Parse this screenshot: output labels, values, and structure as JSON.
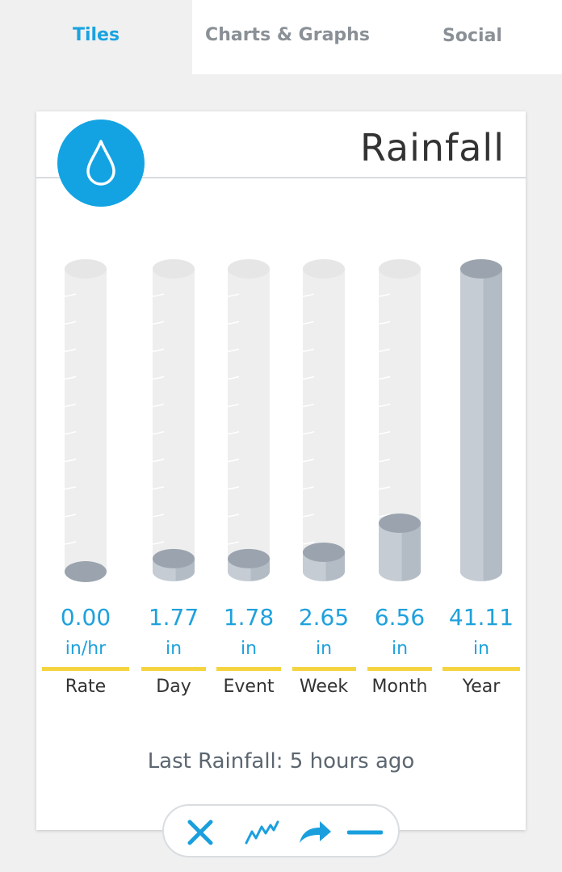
{
  "tabs": [
    {
      "label": "Tiles",
      "active": true
    },
    {
      "label": "Charts & Graphs",
      "active": false
    },
    {
      "label": "Social",
      "active": false
    }
  ],
  "card": {
    "title": "Rainfall",
    "icon": "water-drop-icon",
    "last_rainfall": "Last Rainfall: 5 hours ago"
  },
  "gauges": [
    {
      "value": "0.00",
      "unit": "in/hr",
      "label": "Rate",
      "fill": 0.0
    },
    {
      "value": "1.77",
      "unit": "in",
      "label": "Day",
      "fill": 0.043
    },
    {
      "value": "1.78",
      "unit": "in",
      "label": "Event",
      "fill": 0.043
    },
    {
      "value": "2.65",
      "unit": "in",
      "label": "Week",
      "fill": 0.064
    },
    {
      "value": "6.56",
      "unit": "in",
      "label": "Month",
      "fill": 0.16
    },
    {
      "value": "41.11",
      "unit": "in",
      "label": "Year",
      "fill": 1.0
    }
  ],
  "toolbar": {
    "items": [
      "close-icon",
      "trend-chart-icon",
      "share-arrow-icon",
      "minimize-icon"
    ]
  },
  "colors": {
    "accent": "#13a3e3",
    "tube_empty": "#eeeeee",
    "tube_fill": "#c6ccd4",
    "tube_fill_top": "#9ba4ae",
    "underline": "#f5d442"
  }
}
